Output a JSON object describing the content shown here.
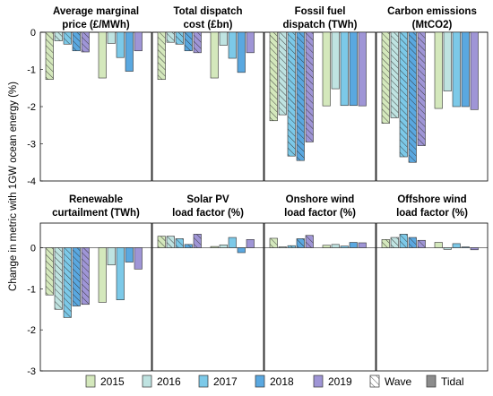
{
  "chart_data": {
    "type": "bar",
    "ylabel": "Change in metric with 1GW ocean energy (%)",
    "years": [
      "2015",
      "2016",
      "2017",
      "2018",
      "2019"
    ],
    "groups": [
      "Wave",
      "Tidal"
    ],
    "legend": {
      "placement": "bottom",
      "entries": [
        "2015",
        "2016",
        "2017",
        "2018",
        "2019",
        "Wave",
        "Tidal"
      ]
    },
    "colors": {
      "2015": "#d4e8bc",
      "2016": "#bfe3e1",
      "2017": "#7cc9e8",
      "2018": "#5aa8e0",
      "2019": "#9f95d6",
      "tidal_swatch": "#8c8c8c"
    },
    "rows": [
      {
        "ylim": [
          -4,
          0
        ],
        "yticks": [
          "-4",
          "-3",
          "-2",
          "-1",
          "0"
        ],
        "panels": [
          {
            "title": [
              "Average marginal",
              "price (£/MWh)"
            ],
            "wave": [
              -1.27,
              -0.23,
              -0.32,
              -0.5,
              -0.53
            ],
            "tidal": [
              -1.23,
              -0.3,
              -0.68,
              -1.05,
              -0.5
            ]
          },
          {
            "title": [
              "Total dispatch",
              "cost (£bn)"
            ],
            "wave": [
              -1.27,
              -0.27,
              -0.32,
              -0.5,
              -0.55
            ],
            "tidal": [
              -1.23,
              -0.35,
              -0.7,
              -1.08,
              -0.55
            ]
          },
          {
            "title": [
              "Fossil fuel",
              "dispatch (TWh)"
            ],
            "wave": [
              -2.38,
              -2.22,
              -3.33,
              -3.45,
              -2.95
            ],
            "tidal": [
              -1.98,
              -1.52,
              -1.97,
              -1.97,
              -1.98
            ]
          },
          {
            "title": [
              "Carbon emissions",
              "(MtCO2)"
            ],
            "wave": [
              -2.45,
              -2.3,
              -3.35,
              -3.5,
              -3.05
            ],
            "tidal": [
              -2.05,
              -1.58,
              -2.0,
              -2.0,
              -2.08
            ]
          }
        ]
      },
      {
        "ylim": [
          -3,
          0.6
        ],
        "yticks": [
          "-3",
          "-2",
          "-1",
          "0"
        ],
        "panels": [
          {
            "title": [
              "Renewable",
              "curtailment (TWh)"
            ],
            "wave": [
              -1.15,
              -1.5,
              -1.7,
              -1.42,
              -1.38
            ],
            "tidal": [
              -1.33,
              -0.42,
              -1.27,
              -0.35,
              -0.52
            ]
          },
          {
            "title": [
              "Solar PV",
              "load factor (%)"
            ],
            "wave": [
              0.28,
              0.28,
              0.22,
              0.08,
              0.33
            ],
            "tidal": [
              0.03,
              0.07,
              0.25,
              -0.12,
              0.2
            ]
          },
          {
            "title": [
              "Onshore wind",
              "load factor (%)"
            ],
            "wave": [
              0.23,
              0.02,
              0.05,
              0.22,
              0.3
            ],
            "tidal": [
              0.06,
              0.08,
              0.04,
              0.13,
              0.12
            ]
          },
          {
            "title": [
              "Offshore wind",
              "load factor (%)"
            ],
            "wave": [
              0.2,
              0.25,
              0.33,
              0.25,
              0.18
            ],
            "tidal": [
              0.13,
              -0.04,
              0.1,
              0.02,
              -0.05
            ]
          }
        ]
      }
    ]
  }
}
